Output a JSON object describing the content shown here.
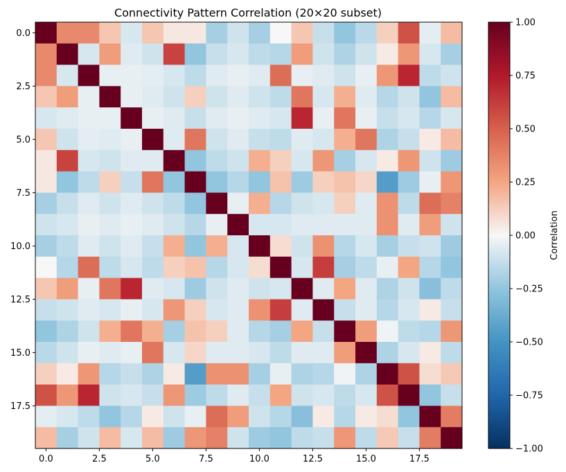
{
  "chart_data": {
    "type": "heatmap",
    "title": "Connectivity Pattern Correlation (20×20 subset)",
    "xlabel": "",
    "ylabel": "",
    "colorbar_label": "Correlation",
    "colormap": "RdBu_r",
    "vmin": -1.0,
    "vmax": 1.0,
    "x_ticks": [
      0.0,
      2.5,
      5.0,
      7.5,
      10.0,
      12.5,
      15.0,
      17.5
    ],
    "x_tick_labels": [
      "0.0",
      "2.5",
      "5.0",
      "7.5",
      "10.0",
      "12.5",
      "15.0",
      "17.5"
    ],
    "y_ticks": [
      0.0,
      2.5,
      5.0,
      7.5,
      10.0,
      12.5,
      15.0,
      17.5
    ],
    "y_tick_labels": [
      "0.0",
      "2.5",
      "5.0",
      "7.5",
      "10.0",
      "12.5",
      "15.0",
      "17.5"
    ],
    "colorbar_ticks": [
      -1.0,
      -0.75,
      -0.5,
      -0.25,
      0.0,
      0.25,
      0.5,
      0.75,
      1.0
    ],
    "colorbar_tick_labels": [
      "−1.00",
      "−0.75",
      "−0.50",
      "−0.25",
      "0.00",
      "0.25",
      "0.50",
      "0.75",
      "1.00"
    ],
    "matrix": [
      [
        1.0,
        0.35,
        0.35,
        0.15,
        -0.08,
        0.15,
        0.05,
        0.05,
        -0.2,
        -0.1,
        -0.2,
        0.0,
        0.15,
        -0.12,
        -0.25,
        -0.15,
        0.12,
        0.55,
        -0.05,
        0.18
      ],
      [
        0.35,
        1.0,
        -0.08,
        0.28,
        -0.06,
        -0.1,
        0.6,
        -0.25,
        -0.12,
        -0.08,
        -0.14,
        -0.16,
        0.28,
        -0.1,
        -0.18,
        -0.1,
        0.04,
        0.3,
        -0.08,
        -0.2
      ],
      [
        0.35,
        -0.08,
        1.0,
        -0.04,
        -0.04,
        -0.05,
        -0.08,
        -0.14,
        -0.06,
        -0.04,
        -0.06,
        0.45,
        -0.04,
        -0.06,
        -0.1,
        -0.04,
        0.3,
        0.7,
        -0.14,
        -0.1
      ],
      [
        0.15,
        0.28,
        -0.04,
        1.0,
        -0.04,
        -0.06,
        -0.1,
        0.12,
        -0.1,
        -0.06,
        -0.1,
        -0.14,
        0.42,
        -0.08,
        0.22,
        -0.06,
        -0.16,
        -0.1,
        -0.25,
        0.18
      ],
      [
        -0.08,
        -0.06,
        -0.04,
        -0.04,
        1.0,
        -0.04,
        -0.06,
        -0.12,
        -0.06,
        -0.04,
        -0.06,
        -0.08,
        0.7,
        -0.04,
        0.42,
        -0.04,
        -0.12,
        -0.08,
        -0.16,
        -0.08
      ],
      [
        0.15,
        -0.1,
        -0.05,
        -0.06,
        -0.04,
        1.0,
        -0.06,
        0.42,
        -0.1,
        -0.06,
        -0.12,
        -0.14,
        -0.06,
        -0.08,
        0.22,
        0.42,
        -0.18,
        -0.12,
        0.04,
        0.18
      ],
      [
        0.05,
        0.6,
        -0.08,
        -0.1,
        -0.06,
        -0.06,
        1.0,
        -0.25,
        -0.14,
        -0.1,
        0.22,
        0.12,
        -0.08,
        0.3,
        -0.2,
        -0.08,
        0.04,
        0.3,
        -0.1,
        -0.22
      ],
      [
        0.05,
        -0.25,
        -0.14,
        0.12,
        -0.12,
        0.42,
        -0.25,
        1.0,
        -0.25,
        -0.16,
        -0.25,
        0.16,
        -0.22,
        0.12,
        0.16,
        0.1,
        -0.45,
        -0.22,
        -0.04,
        0.3
      ],
      [
        -0.2,
        -0.12,
        -0.06,
        -0.1,
        -0.06,
        -0.1,
        -0.14,
        -0.25,
        1.0,
        -0.04,
        0.22,
        -0.16,
        -0.1,
        -0.08,
        0.12,
        -0.06,
        0.32,
        -0.14,
        0.45,
        0.38
      ],
      [
        -0.1,
        -0.08,
        -0.04,
        -0.06,
        -0.04,
        -0.06,
        -0.1,
        -0.16,
        -0.04,
        1.0,
        -0.08,
        -0.08,
        -0.06,
        -0.06,
        -0.06,
        -0.06,
        0.32,
        -0.06,
        0.28,
        -0.1
      ],
      [
        -0.2,
        -0.14,
        -0.06,
        -0.1,
        -0.06,
        -0.12,
        0.22,
        -0.25,
        0.22,
        -0.08,
        1.0,
        0.08,
        -0.1,
        0.32,
        -0.16,
        -0.08,
        -0.2,
        -0.12,
        -0.1,
        -0.22
      ],
      [
        0.0,
        -0.16,
        0.45,
        -0.14,
        -0.08,
        -0.14,
        0.12,
        0.16,
        -0.16,
        -0.08,
        0.08,
        1.0,
        -0.08,
        0.62,
        -0.2,
        -0.14,
        -0.04,
        0.25,
        -0.16,
        -0.25
      ],
      [
        0.15,
        0.28,
        -0.04,
        0.42,
        0.7,
        -0.06,
        -0.08,
        -0.22,
        -0.1,
        -0.06,
        -0.1,
        -0.08,
        1.0,
        -0.06,
        0.25,
        -0.06,
        -0.18,
        -0.1,
        -0.28,
        -0.14
      ],
      [
        -0.12,
        -0.1,
        -0.06,
        -0.08,
        -0.04,
        -0.08,
        0.3,
        0.12,
        -0.08,
        -0.06,
        0.32,
        0.62,
        -0.06,
        1.0,
        -0.12,
        -0.06,
        -0.16,
        -0.08,
        0.04,
        -0.12
      ],
      [
        -0.25,
        -0.18,
        -0.1,
        0.22,
        0.42,
        0.22,
        -0.2,
        0.16,
        0.12,
        -0.06,
        -0.16,
        -0.2,
        0.25,
        -0.12,
        1.0,
        0.28,
        -0.02,
        -0.14,
        -0.16,
        0.3
      ],
      [
        -0.15,
        -0.1,
        -0.04,
        -0.06,
        -0.04,
        0.42,
        -0.08,
        0.1,
        -0.06,
        -0.06,
        -0.08,
        -0.14,
        -0.06,
        -0.06,
        0.28,
        1.0,
        -0.18,
        -0.08,
        0.04,
        -0.14
      ],
      [
        0.12,
        0.04,
        0.3,
        -0.16,
        -0.12,
        -0.18,
        0.04,
        -0.45,
        0.32,
        0.32,
        -0.2,
        -0.04,
        -0.18,
        -0.16,
        -0.02,
        -0.18,
        1.0,
        0.55,
        0.08,
        0.14
      ],
      [
        0.55,
        0.3,
        0.7,
        -0.1,
        -0.08,
        -0.12,
        0.3,
        -0.22,
        -0.14,
        -0.06,
        -0.12,
        0.25,
        -0.1,
        -0.08,
        -0.14,
        -0.08,
        0.55,
        1.0,
        -0.25,
        -0.12
      ],
      [
        -0.05,
        -0.08,
        -0.14,
        -0.25,
        -0.16,
        0.04,
        -0.1,
        -0.04,
        0.45,
        0.28,
        -0.1,
        -0.16,
        -0.28,
        0.04,
        -0.16,
        0.04,
        0.08,
        -0.25,
        1.0,
        0.4
      ],
      [
        0.18,
        -0.2,
        -0.1,
        0.18,
        -0.08,
        0.18,
        -0.22,
        0.3,
        0.38,
        -0.1,
        -0.22,
        -0.25,
        -0.14,
        -0.12,
        0.3,
        -0.14,
        0.14,
        -0.12,
        0.4,
        1.0
      ]
    ]
  }
}
